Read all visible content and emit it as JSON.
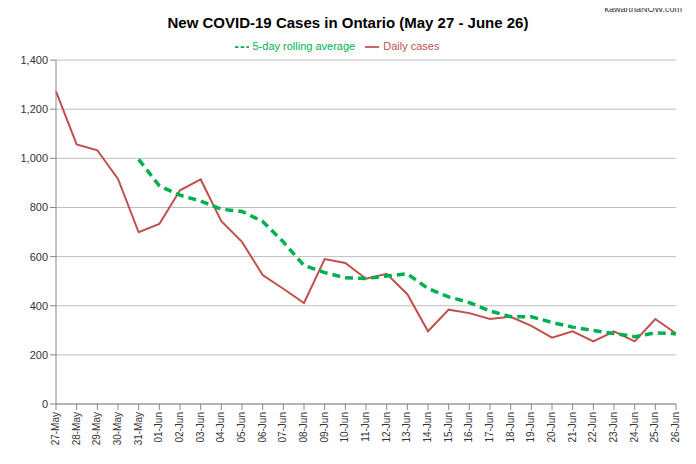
{
  "chart_data": {
    "type": "line",
    "title": "New COVID-19 Cases in Ontario (May 27 - June 26)",
    "source": "kawarthaNOW.com",
    "categories": [
      "27-May",
      "28-May",
      "29-May",
      "30-May",
      "31-May",
      "01-Jun",
      "02-Jun",
      "03-Jun",
      "04-Jun",
      "05-Jun",
      "06-Jun",
      "07-Jun",
      "08-Jun",
      "09-Jun",
      "10-Jun",
      "11-Jun",
      "12-Jun",
      "13-Jun",
      "14-Jun",
      "15-Jun",
      "16-Jun",
      "17-Jun",
      "18-Jun",
      "19-Jun",
      "20-Jun",
      "21-Jun",
      "22-Jun",
      "23-Jun",
      "24-Jun",
      "25-Jun",
      "26-Jun"
    ],
    "series": [
      {
        "name": "Daily cases",
        "color": "#c0504d",
        "line_style": "solid",
        "values": [
          1273,
          1057,
          1033,
          916,
          699,
          733,
          870,
          914,
          744,
          660,
          525,
          469,
          411,
          590,
          574,
          510,
          530,
          447,
          296,
          384,
          370,
          346,
          355,
          318,
          270,
          296,
          255,
          296,
          255,
          346,
          287
        ]
      },
      {
        "name": "5-day rolling average",
        "color": "#00b050",
        "line_style": "dashed",
        "values": [
          null,
          null,
          null,
          null,
          996,
          888,
          850,
          826,
          793,
          784,
          743,
          660,
          564,
          535,
          514,
          511,
          521,
          530,
          470,
          436,
          413,
          379,
          355,
          355,
          332,
          313,
          299,
          287,
          274,
          290,
          286
        ]
      }
    ],
    "ylim": [
      0,
      1400
    ],
    "yticks": [
      0,
      200,
      400,
      600,
      800,
      {
        "value": 1000,
        "label": "1,000"
      },
      {
        "value": 1200,
        "label": "1,200"
      },
      {
        "value": 1400,
        "label": "1,400"
      }
    ],
    "grid": true,
    "legend": "top"
  }
}
